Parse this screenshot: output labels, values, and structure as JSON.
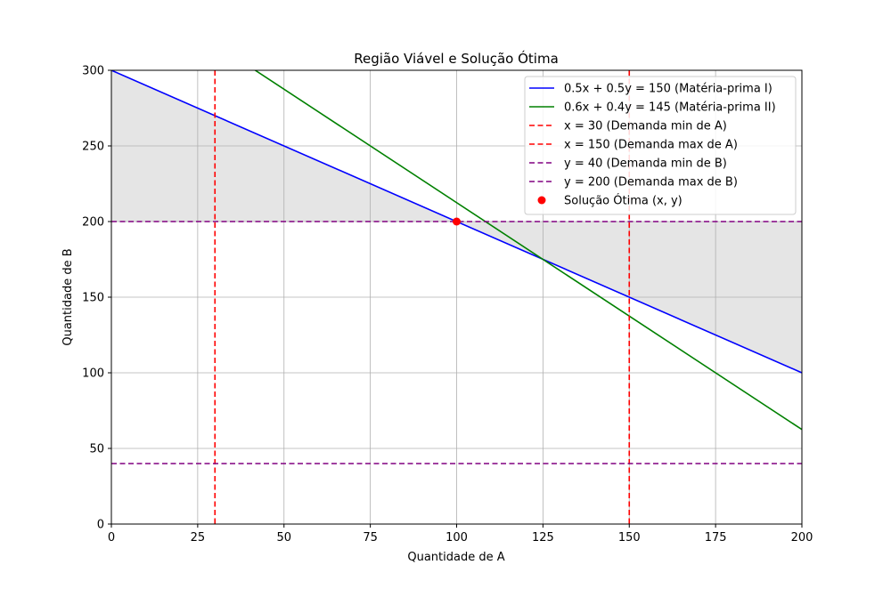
{
  "chart_data": {
    "type": "line",
    "title": "Região Viável e Solução Ótima",
    "xlabel": "Quantidade de A",
    "ylabel": "Quantidade de B",
    "xlim": [
      0,
      200
    ],
    "ylim": [
      0,
      300
    ],
    "xticks": [
      0,
      25,
      50,
      75,
      100,
      125,
      150,
      175,
      200
    ],
    "yticks": [
      0,
      50,
      100,
      150,
      200,
      250,
      300
    ],
    "grid": true,
    "legend_position": "top-right",
    "shaded_region": {
      "color": "#e5e5e5",
      "upper": [
        [
          0,
          300
        ],
        [
          200,
          100
        ]
      ],
      "lower": [
        [
          0,
          200
        ],
        [
          200,
          200
        ]
      ]
    },
    "series": [
      {
        "name": "0.5x + 0.5y = 150 (Matéria-prima I)",
        "kind": "line",
        "style": "solid",
        "color": "#0000ff",
        "points": [
          [
            0,
            300
          ],
          [
            200,
            100
          ]
        ]
      },
      {
        "name": "0.6x + 0.4y = 145 (Matéria-prima II)",
        "kind": "line",
        "style": "solid",
        "color": "#008000",
        "points": [
          [
            0,
            362.5
          ],
          [
            200,
            62.5
          ]
        ]
      },
      {
        "name": "x = 30 (Demanda min de A)",
        "kind": "vline",
        "style": "dashed",
        "color": "#ff0000",
        "value": 30
      },
      {
        "name": "x = 150 (Demanda max de A)",
        "kind": "vline",
        "style": "dashed",
        "color": "#ff0000",
        "value": 150
      },
      {
        "name": "y = 40 (Demanda min de B)",
        "kind": "hline",
        "style": "dashed",
        "color": "#800080",
        "value": 40
      },
      {
        "name": "y = 200 (Demanda max de B)",
        "kind": "hline",
        "style": "dashed",
        "color": "#800080",
        "value": 200
      },
      {
        "name": "Solução Ótima (x, y)",
        "kind": "point",
        "color": "#ff0000",
        "points": [
          [
            100,
            200
          ]
        ]
      }
    ]
  }
}
